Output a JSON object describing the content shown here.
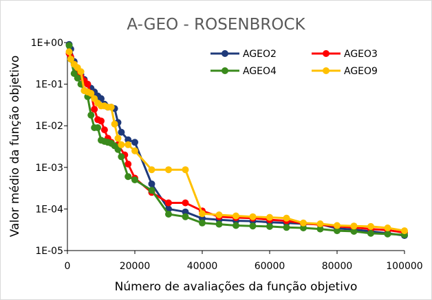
{
  "chart_data": {
    "type": "line",
    "title": "A-GEO - ROSENBROCK",
    "xlabel": "Número de avaliações da função objetivo",
    "ylabel": "Valor médio da função objetivo",
    "x_scale": "linear",
    "y_scale": "log",
    "xlim": [
      0,
      100000
    ],
    "ylim": [
      1e-05,
      1
    ],
    "x_ticks": [
      0,
      20000,
      40000,
      60000,
      80000,
      100000
    ],
    "x_tick_labels": [
      "0",
      "20000",
      "40000",
      "60000",
      "80000",
      "100000"
    ],
    "y_ticks": [
      1e-05,
      0.0001,
      0.001,
      0.01,
      0.1,
      1
    ],
    "y_tick_labels": [
      "1E-05",
      "1E-04",
      "1E-03",
      "1E-02",
      "1E-01",
      "1E+00"
    ],
    "grid": false,
    "legend_position": "top-right",
    "series": [
      {
        "name": "AGEO2",
        "color": "#1f3a7a",
        "points": [
          [
            500,
            0.9
          ],
          [
            1000,
            0.7
          ],
          [
            2000,
            0.35
          ],
          [
            3000,
            0.22
          ],
          [
            4000,
            0.17
          ],
          [
            5000,
            0.13
          ],
          [
            6000,
            0.1
          ],
          [
            7000,
            0.08
          ],
          [
            8000,
            0.065
          ],
          [
            9000,
            0.052
          ],
          [
            10000,
            0.045
          ],
          [
            11000,
            0.033
          ],
          [
            12000,
            0.028
          ],
          [
            13000,
            0.028
          ],
          [
            14000,
            0.026
          ],
          [
            15000,
            0.012
          ],
          [
            16000,
            0.007
          ],
          [
            18000,
            0.0046
          ],
          [
            20000,
            0.004
          ],
          [
            25000,
            0.0004
          ],
          [
            30000,
            0.0001
          ],
          [
            35000,
            8.5e-05
          ],
          [
            40000,
            5.9e-05
          ],
          [
            45000,
            5.5e-05
          ],
          [
            50000,
            5.2e-05
          ],
          [
            55000,
            5.1e-05
          ],
          [
            60000,
            4.8e-05
          ],
          [
            65000,
            4.6e-05
          ],
          [
            70000,
            4.4e-05
          ],
          [
            75000,
            4.3e-05
          ],
          [
            80000,
            3.4e-05
          ],
          [
            85000,
            3.2e-05
          ],
          [
            90000,
            2.9e-05
          ],
          [
            95000,
            2.6e-05
          ],
          [
            100000,
            2.3e-05
          ]
        ]
      },
      {
        "name": "AGEO3",
        "color": "#ff0000",
        "points": [
          [
            500,
            0.55
          ],
          [
            1000,
            0.45
          ],
          [
            2000,
            0.3
          ],
          [
            3000,
            0.2
          ],
          [
            4000,
            0.15
          ],
          [
            5000,
            0.12
          ],
          [
            6000,
            0.1
          ],
          [
            7000,
            0.06
          ],
          [
            8000,
            0.025
          ],
          [
            9000,
            0.014
          ],
          [
            10000,
            0.013
          ],
          [
            11000,
            0.008
          ],
          [
            12000,
            0.005
          ],
          [
            13000,
            0.004
          ],
          [
            15000,
            0.0035
          ],
          [
            17000,
            0.002
          ],
          [
            18000,
            0.0012
          ],
          [
            20000,
            0.00055
          ],
          [
            25000,
            0.00025
          ],
          [
            30000,
            0.00014
          ],
          [
            35000,
            0.00014
          ],
          [
            40000,
            9e-05
          ],
          [
            45000,
            6.5e-05
          ],
          [
            50000,
            6.2e-05
          ],
          [
            55000,
            6e-05
          ],
          [
            60000,
            5.5e-05
          ],
          [
            65000,
            5.2e-05
          ],
          [
            70000,
            4.5e-05
          ],
          [
            75000,
            4.2e-05
          ],
          [
            80000,
            3.8e-05
          ],
          [
            85000,
            3.6e-05
          ],
          [
            90000,
            3.3e-05
          ],
          [
            95000,
            3.1e-05
          ],
          [
            100000,
            2.7e-05
          ]
        ]
      },
      {
        "name": "AGEO4",
        "color": "#3a8a1c",
        "points": [
          [
            500,
            0.85
          ],
          [
            1000,
            0.4
          ],
          [
            2000,
            0.18
          ],
          [
            3000,
            0.14
          ],
          [
            4000,
            0.1
          ],
          [
            5000,
            0.07
          ],
          [
            6000,
            0.05
          ],
          [
            7000,
            0.018
          ],
          [
            8000,
            0.009
          ],
          [
            9000,
            0.009
          ],
          [
            10000,
            0.0045
          ],
          [
            11000,
            0.0042
          ],
          [
            12000,
            0.004
          ],
          [
            13000,
            0.0038
          ],
          [
            14000,
            0.0033
          ],
          [
            15000,
            0.0027
          ],
          [
            16000,
            0.0018
          ],
          [
            18000,
            0.0006
          ],
          [
            20000,
            0.0005
          ],
          [
            25000,
            0.00028
          ],
          [
            30000,
            7.5e-05
          ],
          [
            35000,
            6.5e-05
          ],
          [
            40000,
            4.6e-05
          ],
          [
            45000,
            4.3e-05
          ],
          [
            50000,
            4e-05
          ],
          [
            55000,
            3.9e-05
          ],
          [
            60000,
            3.8e-05
          ],
          [
            65000,
            3.6e-05
          ],
          [
            70000,
            3.5e-05
          ],
          [
            75000,
            3.3e-05
          ],
          [
            80000,
            3e-05
          ],
          [
            85000,
            2.9e-05
          ],
          [
            90000,
            2.6e-05
          ],
          [
            95000,
            2.5e-05
          ],
          [
            100000,
            2.4e-05
          ]
        ]
      },
      {
        "name": "AGEO9",
        "color": "#ffc000",
        "points": [
          [
            500,
            0.6
          ],
          [
            1000,
            0.4
          ],
          [
            2000,
            0.3
          ],
          [
            3000,
            0.25
          ],
          [
            4000,
            0.2
          ],
          [
            5000,
            0.07
          ],
          [
            6000,
            0.065
          ],
          [
            7000,
            0.06
          ],
          [
            8000,
            0.045
          ],
          [
            9000,
            0.035
          ],
          [
            10000,
            0.03
          ],
          [
            11000,
            0.03
          ],
          [
            12000,
            0.028
          ],
          [
            13000,
            0.028
          ],
          [
            14000,
            0.011
          ],
          [
            15000,
            0.005
          ],
          [
            16000,
            0.0035
          ],
          [
            18000,
            0.0035
          ],
          [
            20000,
            0.0025
          ],
          [
            25000,
            0.00088
          ],
          [
            30000,
            0.00088
          ],
          [
            35000,
            0.00088
          ],
          [
            40000,
            7.7e-05
          ],
          [
            45000,
            7.2e-05
          ],
          [
            50000,
            6.8e-05
          ],
          [
            55000,
            6.5e-05
          ],
          [
            60000,
            6.3e-05
          ],
          [
            65000,
            6e-05
          ],
          [
            70000,
            4.6e-05
          ],
          [
            75000,
            4.4e-05
          ],
          [
            80000,
            4e-05
          ],
          [
            85000,
            3.9e-05
          ],
          [
            90000,
            3.8e-05
          ],
          [
            95000,
            3.5e-05
          ],
          [
            100000,
            3e-05
          ]
        ]
      }
    ]
  }
}
